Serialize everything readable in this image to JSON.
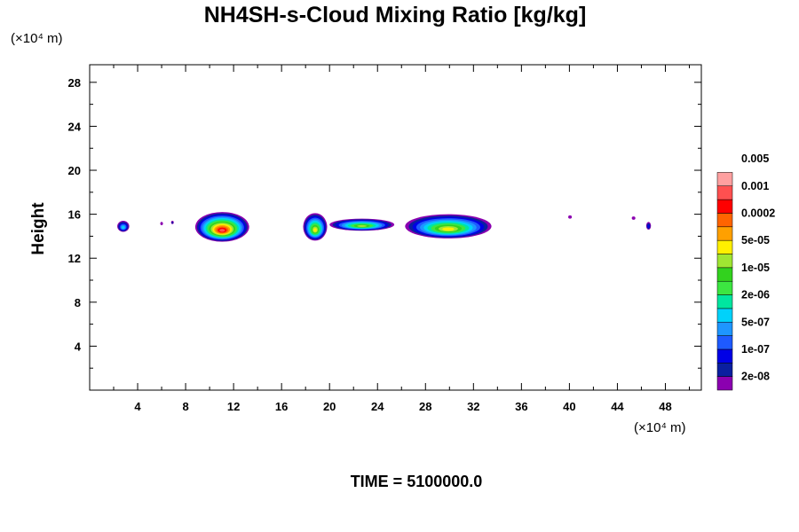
{
  "chart_data": {
    "type": "heatmap",
    "title": "NH4SH-s-Cloud Mixing Ratio [kg/kg]",
    "ylabel": "Height",
    "y_unit": "(×10⁴ m)",
    "x_unit": "(×10⁴ m)",
    "xlim": [
      0,
      51
    ],
    "ylim": [
      0,
      29.6
    ],
    "xticks": [
      4,
      8,
      12,
      16,
      20,
      24,
      28,
      32,
      36,
      40,
      44,
      48
    ],
    "yticks": [
      4,
      8,
      12,
      16,
      20,
      24,
      28
    ],
    "footer": "TIME = 5100000.0",
    "colorbar": {
      "labels": [
        "0.005",
        "0.001",
        "0.0002",
        "5e-05",
        "1e-05",
        "2e-06",
        "5e-07",
        "1e-07",
        "2e-08"
      ],
      "colors": [
        "#8B00B0",
        "#0A1FA0",
        "#0000E6",
        "#1E5AFF",
        "#1E96FF",
        "#00D2FA",
        "#00E6A0",
        "#3CE641",
        "#32D21E",
        "#A0E632",
        "#FFF000",
        "#FFA000",
        "#FF6400",
        "#FF0000",
        "#FF5050",
        "#FFA0A0"
      ]
    },
    "clouds": [
      {
        "x": [
          2.3,
          3.3
        ],
        "y": [
          14.4,
          15.4
        ],
        "max_level": 5
      },
      {
        "x": [
          5.9,
          6.1
        ],
        "y": [
          15.0,
          15.3
        ],
        "max_level": 0
      },
      {
        "x": [
          6.8,
          7.0
        ],
        "y": [
          15.1,
          15.4
        ],
        "max_level": 1
      },
      {
        "x": [
          8.8,
          13.3
        ],
        "y": [
          13.5,
          16.2
        ],
        "max_level": 14
      },
      {
        "x": [
          17.8,
          19.8
        ],
        "y": [
          13.6,
          16.1
        ],
        "max_level": 10
      },
      {
        "x": [
          20.0,
          25.4
        ],
        "y": [
          14.5,
          15.6
        ],
        "max_level": 9
      },
      {
        "x": [
          26.3,
          33.5
        ],
        "y": [
          13.8,
          16.0
        ],
        "max_level": 10
      },
      {
        "x": [
          39.9,
          40.2
        ],
        "y": [
          15.6,
          15.9
        ],
        "max_level": 0
      },
      {
        "x": [
          45.2,
          45.5
        ],
        "y": [
          15.5,
          15.8
        ],
        "max_level": 0
      },
      {
        "x": [
          46.4,
          46.8
        ],
        "y": [
          14.6,
          15.3
        ],
        "max_level": 2
      }
    ]
  }
}
